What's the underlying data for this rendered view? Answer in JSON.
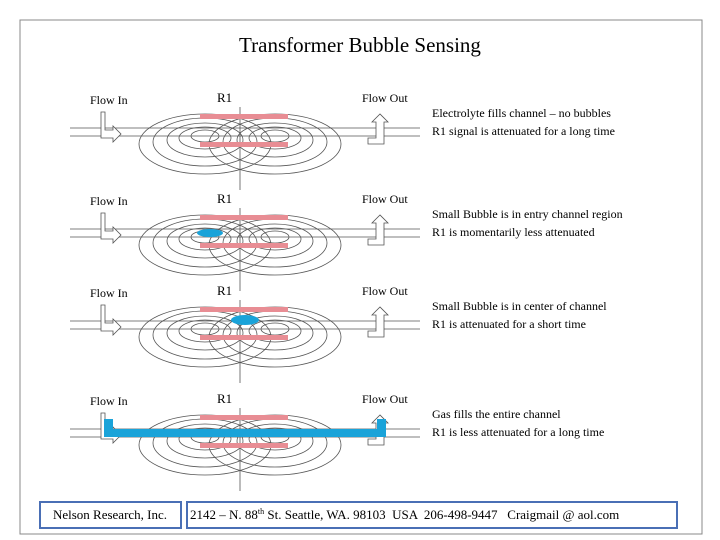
{
  "header": {
    "title": "Transformer Bubble Sensing"
  },
  "rows": [
    {
      "flow_in": "Flow In",
      "resistor": "R1",
      "flow_out": "Flow Out",
      "description": [
        "Electrolyte fills channel – no bubbles",
        "R1 signal is attenuated for a long time"
      ]
    },
    {
      "flow_in": "Flow In",
      "resistor": "R1",
      "flow_out": "Flow Out",
      "description": [
        "Small Bubble is in entry channel region",
        "R1 is momentarily less attenuated"
      ]
    },
    {
      "flow_in": "Flow In",
      "resistor": "R1",
      "flow_out": "Flow Out",
      "description": [
        "Small Bubble is in center of channel",
        "R1 is attenuated for a short time"
      ]
    },
    {
      "flow_in": "Flow In",
      "resistor": "R1",
      "flow_out": "Flow Out",
      "description": [
        "Gas fills the entire channel",
        "R1 is less attenuated for a long time"
      ]
    }
  ],
  "footer": {
    "company": "Nelson Research, Inc.",
    "address": [
      "2142 – N. 88",
      "th",
      " St. Seattle, WA. 98103  USA  206-498-9447   Craigmail @ aol.com"
    ]
  }
}
